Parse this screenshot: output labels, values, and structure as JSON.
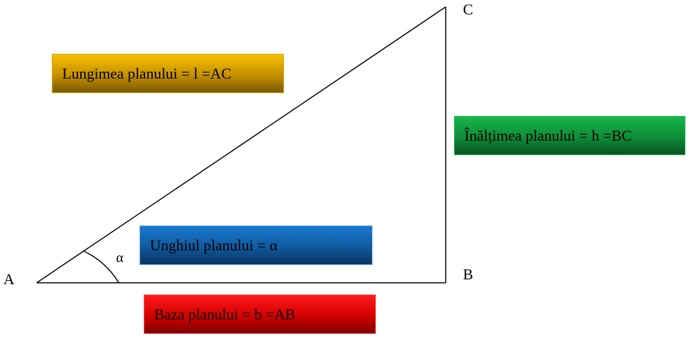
{
  "vertices": {
    "a": "A",
    "b": "B",
    "c": "C"
  },
  "angle_symbol": "α",
  "labels": {
    "length": "Lungimea planului = l =AC",
    "height": "Înălțimea planului = h =BC",
    "angle": "Unghiul planului = α",
    "base": "Baza planului = b =AB"
  },
  "colors": {
    "length_box": "#f7c000",
    "height_box": "#18b54a",
    "angle_box": "#1a78d0",
    "base_box": "#ff1a1a",
    "lines": "#000000"
  }
}
